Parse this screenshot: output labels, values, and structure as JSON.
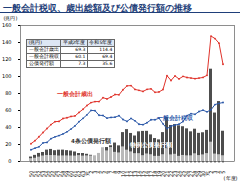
{
  "chart_data": {
    "type": "bar",
    "title": "一般会計税収、歳出総額及び公債発行額の推移",
    "y_label": "(兆円)",
    "x_label": "(年度)",
    "categories": [
      "50",
      "51",
      "52",
      "53",
      "54",
      "55",
      "56",
      "57",
      "58",
      "59",
      "60",
      "61",
      "62",
      "63",
      "元",
      "2",
      "3",
      "4",
      "5",
      "6",
      "7",
      "8",
      "9",
      "10",
      "11",
      "12",
      "13",
      "14",
      "15",
      "16",
      "17",
      "18",
      "19",
      "20",
      "21",
      "22",
      "23",
      "24",
      "25",
      "26",
      "27",
      "28",
      "29",
      "30",
      "元",
      "2",
      "3",
      "4",
      "5"
    ],
    "stacked": true,
    "series": [
      {
        "name": "4条公債発行額",
        "type": "bar",
        "color": "#b8b8b8",
        "values": [
          3.2,
          3.7,
          5.0,
          6.3,
          7.1,
          7.0,
          6.8,
          6.3,
          6.4,
          6.4,
          6.3,
          6.2,
          6.8,
          6.2,
          6.4,
          6.3,
          6.7,
          9.5,
          16.2,
          12.3,
          16.4,
          10.7,
          9.9,
          17.0,
          13.2,
          11.1,
          9.1,
          9.1,
          6.7,
          8.7,
          7.8,
          6.0,
          6.0,
          7.8,
          15.0,
          7.6,
          8.4,
          6.0,
          7.1,
          6.5,
          6.5,
          8.9,
          6.9,
          7.6,
          9.2,
          22.6,
          8.6,
          7.8,
          6.6
        ]
      },
      {
        "name": "特例公債発行額",
        "type": "bar",
        "color": "#4d4d4d",
        "values": [
          2.1,
          3.5,
          4.5,
          4.3,
          6.3,
          7.2,
          5.9,
          7.0,
          7.0,
          6.4,
          6.0,
          5.0,
          2.6,
          3.2,
          2.1,
          1.0,
          0,
          0,
          0,
          4.1,
          2.1,
          11.0,
          8.5,
          17.0,
          24.3,
          21.9,
          20.9,
          25.8,
          28.7,
          26.8,
          23.5,
          21.0,
          19.4,
          26.2,
          36.9,
          34.8,
          35.0,
          36.0,
          33.8,
          31.9,
          28.4,
          29.1,
          26.2,
          26.2,
          27.4,
          86.0,
          48.4,
          62.7,
          29.0
        ]
      },
      {
        "name": "一般会計歳出",
        "type": "line",
        "color": "#e0332b",
        "marker": "circle",
        "values": [
          20.9,
          24.5,
          29.1,
          34.1,
          38.8,
          43.4,
          46.9,
          47.2,
          50.6,
          51.5,
          53.0,
          53.6,
          57.7,
          61.5,
          65.9,
          69.3,
          70.5,
          70.5,
          75.1,
          73.6,
          75.9,
          78.8,
          78.5,
          84.4,
          89.0,
          89.3,
          84.8,
          83.7,
          82.4,
          84.9,
          85.5,
          81.4,
          81.8,
          84.7,
          101.0,
          95.3,
          100.7,
          97.1,
          100.2,
          98.8,
          98.2,
          97.5,
          98.1,
          98.9,
          101.4,
          147.6,
          144.6,
          139.2,
          114.4
        ]
      },
      {
        "name": "一般会計税収",
        "type": "line",
        "color": "#2a57a8",
        "marker": "circle",
        "values": [
          13.8,
          15.7,
          17.3,
          21.9,
          22.5,
          26.9,
          29.0,
          30.5,
          32.4,
          34.9,
          38.2,
          41.9,
          46.8,
          50.8,
          54.9,
          60.1,
          59.8,
          54.4,
          54.1,
          51.0,
          51.9,
          52.1,
          53.9,
          49.4,
          47.2,
          50.7,
          47.9,
          43.8,
          43.3,
          45.6,
          49.1,
          49.1,
          51.0,
          44.3,
          38.7,
          41.5,
          42.8,
          43.9,
          47.0,
          54.0,
          56.3,
          55.5,
          58.8,
          60.4,
          58.4,
          60.8,
          67.0,
          68.4,
          69.4
        ]
      }
    ],
    "ylim": [
      0,
      160
    ],
    "yticks": [
      0,
      20,
      40,
      60,
      80,
      100,
      120,
      140,
      160
    ],
    "grid": false,
    "table": {
      "header": [
        "(兆円)",
        "平成2年度",
        "令和5年度"
      ],
      "rows": [
        [
          "一般会計歳出",
          "69.3",
          "114.4"
        ],
        [
          "一般会計税収",
          "60.1",
          "69.4"
        ],
        [
          "公債発行額",
          "7.3",
          "35.6"
        ]
      ]
    }
  }
}
